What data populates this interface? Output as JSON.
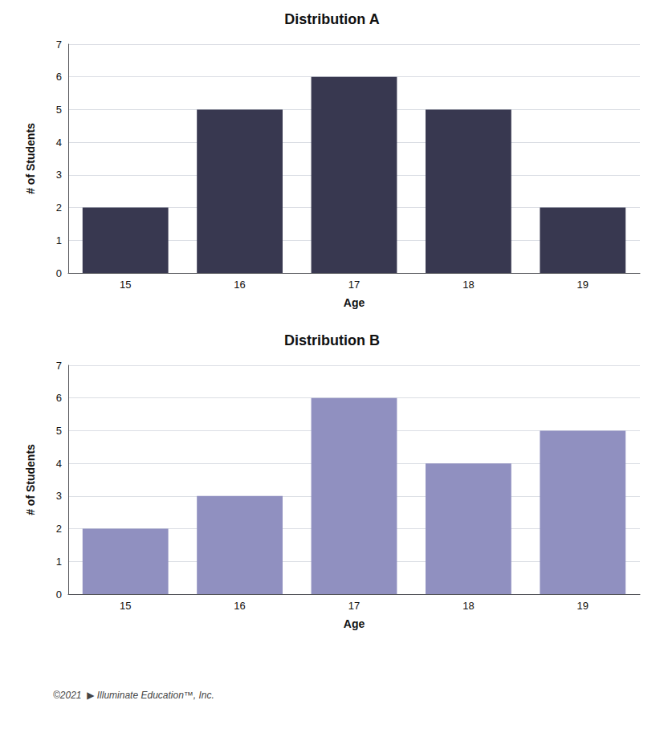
{
  "chart_data": [
    {
      "type": "bar",
      "title": "Distribution A",
      "xlabel": "Age",
      "ylabel": "# of Students",
      "categories": [
        15,
        16,
        17,
        18,
        19
      ],
      "values": [
        2,
        5,
        6,
        5,
        2
      ],
      "color": "#383850",
      "ylim": [
        0,
        7
      ],
      "yticks": [
        0,
        1,
        2,
        3,
        4,
        5,
        6,
        7
      ],
      "grid": true
    },
    {
      "type": "bar",
      "title": "Distribution B",
      "xlabel": "Age",
      "ylabel": "# of Students",
      "categories": [
        15,
        16,
        17,
        18,
        19
      ],
      "values": [
        2,
        3,
        6,
        4,
        5
      ],
      "color": "#9090c0",
      "ylim": [
        0,
        7
      ],
      "yticks": [
        0,
        1,
        2,
        3,
        4,
        5,
        6,
        7
      ],
      "grid": true,
      "annotations": [
        "©2021  ▶ Illuminate Education™, Inc."
      ]
    }
  ]
}
